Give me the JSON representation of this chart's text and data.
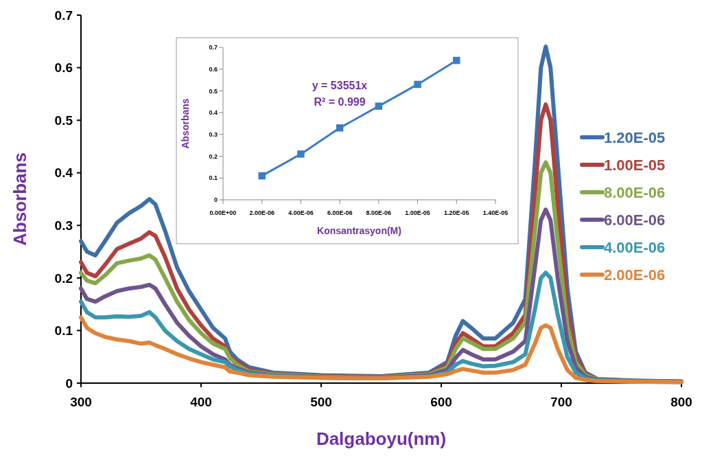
{
  "chart_data": [
    {
      "type": "line",
      "xlabel": "Dalgaboyu(nm)",
      "ylabel": "Absorbans",
      "x": [
        300,
        305,
        312,
        320,
        330,
        340,
        350,
        357,
        362,
        370,
        380,
        390,
        400,
        410,
        420,
        424,
        430,
        440,
        460,
        500,
        550,
        590,
        605,
        612,
        618,
        625,
        635,
        645,
        660,
        670,
        678,
        683,
        687,
        691,
        697,
        705,
        712,
        720,
        730,
        760,
        800
      ],
      "xlim": [
        300,
        800
      ],
      "xticks": [
        300,
        400,
        500,
        600,
        700,
        800
      ],
      "ylim": [
        0,
        0.7
      ],
      "yticks": [
        0,
        0.1,
        0.2,
        0.3,
        0.4,
        0.5,
        0.6,
        0.7
      ],
      "grid": false,
      "legend": "right",
      "marker": "none",
      "series": [
        {
          "name": "1.20E-05",
          "color": "#3f6fa8",
          "values": [
            0.27,
            0.25,
            0.243,
            0.27,
            0.305,
            0.323,
            0.337,
            0.35,
            0.34,
            0.29,
            0.22,
            0.175,
            0.14,
            0.105,
            0.085,
            0.06,
            0.045,
            0.03,
            0.02,
            0.015,
            0.013,
            0.02,
            0.04,
            0.09,
            0.118,
            0.105,
            0.085,
            0.085,
            0.115,
            0.16,
            0.42,
            0.6,
            0.64,
            0.6,
            0.42,
            0.18,
            0.06,
            0.02,
            0.008,
            0.005,
            0.003
          ]
        },
        {
          "name": "1.00E-05",
          "color": "#b0413e",
          "values": [
            0.23,
            0.21,
            0.203,
            0.225,
            0.255,
            0.265,
            0.275,
            0.287,
            0.28,
            0.24,
            0.18,
            0.14,
            0.11,
            0.085,
            0.07,
            0.05,
            0.04,
            0.025,
            0.018,
            0.013,
            0.012,
            0.018,
            0.035,
            0.075,
            0.095,
            0.085,
            0.07,
            0.07,
            0.095,
            0.13,
            0.36,
            0.5,
            0.53,
            0.5,
            0.34,
            0.14,
            0.05,
            0.017,
            0.007,
            0.004,
            0.003
          ]
        },
        {
          "name": "8.00E-06",
          "color": "#86a84a",
          "values": [
            0.21,
            0.195,
            0.19,
            0.205,
            0.228,
            0.233,
            0.237,
            0.243,
            0.235,
            0.2,
            0.155,
            0.12,
            0.095,
            0.075,
            0.065,
            0.048,
            0.035,
            0.022,
            0.017,
            0.012,
            0.011,
            0.017,
            0.03,
            0.065,
            0.085,
            0.077,
            0.065,
            0.065,
            0.085,
            0.115,
            0.29,
            0.4,
            0.42,
            0.4,
            0.27,
            0.11,
            0.04,
            0.015,
            0.007,
            0.004,
            0.003
          ]
        },
        {
          "name": "6.00E-06",
          "color": "#6e548d",
          "values": [
            0.18,
            0.16,
            0.155,
            0.165,
            0.175,
            0.18,
            0.183,
            0.187,
            0.18,
            0.15,
            0.115,
            0.09,
            0.07,
            0.055,
            0.045,
            0.035,
            0.028,
            0.02,
            0.015,
            0.011,
            0.01,
            0.015,
            0.025,
            0.048,
            0.063,
            0.055,
            0.045,
            0.045,
            0.06,
            0.08,
            0.22,
            0.31,
            0.33,
            0.31,
            0.2,
            0.08,
            0.03,
            0.012,
            0.006,
            0.004,
            0.003
          ]
        },
        {
          "name": "4.00E-06",
          "color": "#3b97b0",
          "values": [
            0.155,
            0.135,
            0.125,
            0.125,
            0.127,
            0.126,
            0.128,
            0.135,
            0.125,
            0.1,
            0.08,
            0.065,
            0.055,
            0.045,
            0.04,
            0.032,
            0.025,
            0.018,
            0.014,
            0.01,
            0.009,
            0.013,
            0.02,
            0.035,
            0.042,
            0.037,
            0.032,
            0.033,
            0.04,
            0.055,
            0.14,
            0.2,
            0.21,
            0.2,
            0.13,
            0.05,
            0.02,
            0.009,
            0.005,
            0.003,
            0.002
          ]
        },
        {
          "name": "2.00E-06",
          "color": "#e0843a",
          "values": [
            0.125,
            0.105,
            0.095,
            0.088,
            0.083,
            0.08,
            0.075,
            0.077,
            0.072,
            0.065,
            0.055,
            0.047,
            0.04,
            0.035,
            0.03,
            0.022,
            0.02,
            0.015,
            0.012,
            0.01,
            0.009,
            0.012,
            0.017,
            0.023,
            0.027,
            0.024,
            0.02,
            0.02,
            0.025,
            0.035,
            0.075,
            0.105,
            0.11,
            0.105,
            0.065,
            0.025,
            0.01,
            0.006,
            0.004,
            0.003,
            0.002
          ]
        }
      ]
    },
    {
      "type": "line",
      "xlabel": "Konsantrasyon(M)",
      "ylabel": "Absorbans",
      "x": [
        2e-06,
        4e-06,
        6e-06,
        8e-06,
        1e-05,
        1.2e-05
      ],
      "xlim": [
        0,
        1.4e-05
      ],
      "xticks": [
        {
          "value": 0,
          "label": "0.00E+00"
        },
        {
          "value": 2e-06,
          "label": "2.00E-06"
        },
        {
          "value": 4e-06,
          "label": "4.00E-06"
        },
        {
          "value": 6e-06,
          "label": "6.00E-06"
        },
        {
          "value": 8e-06,
          "label": "8.00E-06"
        },
        {
          "value": 1e-05,
          "label": "1.00E-05"
        },
        {
          "value": 1.2e-05,
          "label": "1.20E-05"
        },
        {
          "value": 1.4e-05,
          "label": "1.40E-05"
        }
      ],
      "ylim": [
        0,
        0.7
      ],
      "yticks": [
        0,
        0.1,
        0.2,
        0.3,
        0.4,
        0.5,
        0.6,
        0.7
      ],
      "grid": false,
      "legend": false,
      "marker": "square",
      "annotations": [
        "y = 53551x",
        "R² = 0.999"
      ],
      "series": [
        {
          "color": "#3c7dc4",
          "values": [
            0.11,
            0.21,
            0.33,
            0.43,
            0.53,
            0.64
          ]
        }
      ]
    }
  ]
}
